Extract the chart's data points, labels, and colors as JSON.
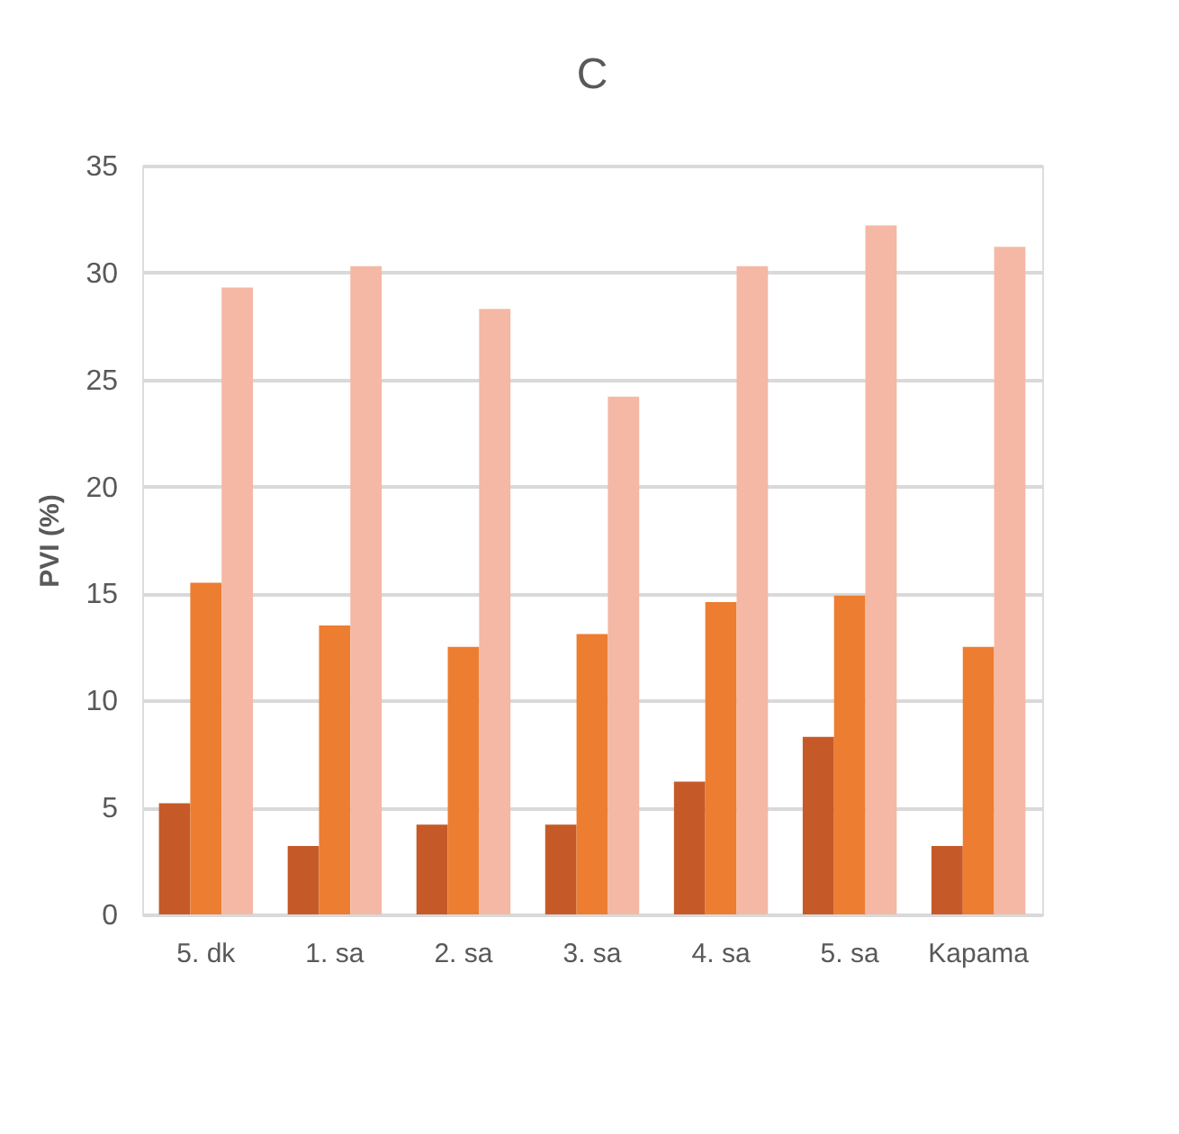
{
  "chart_data": {
    "type": "bar",
    "title": "C",
    "ylabel": "PVI (%)",
    "categories": [
      "5. dk",
      "1. sa",
      "2. sa",
      "3. sa",
      "4. sa",
      "5. sa",
      "Kapama"
    ],
    "series": [
      {
        "color": "#c55a28",
        "values": [
          5.2,
          3.2,
          4.2,
          4.2,
          6.2,
          8.3,
          3.2
        ]
      },
      {
        "color": "#ed7d31",
        "values": [
          15.5,
          13.5,
          12.5,
          13.1,
          14.6,
          14.9,
          12.5
        ]
      },
      {
        "color": "#f4b8a4",
        "values": [
          29.3,
          30.3,
          28.3,
          24.2,
          30.3,
          32.2,
          31.2
        ]
      }
    ],
    "ylim": [
      0,
      35
    ],
    "yticks": [
      0,
      5,
      10,
      15,
      20,
      25,
      30,
      35
    ],
    "grid": "y",
    "legend": false
  }
}
